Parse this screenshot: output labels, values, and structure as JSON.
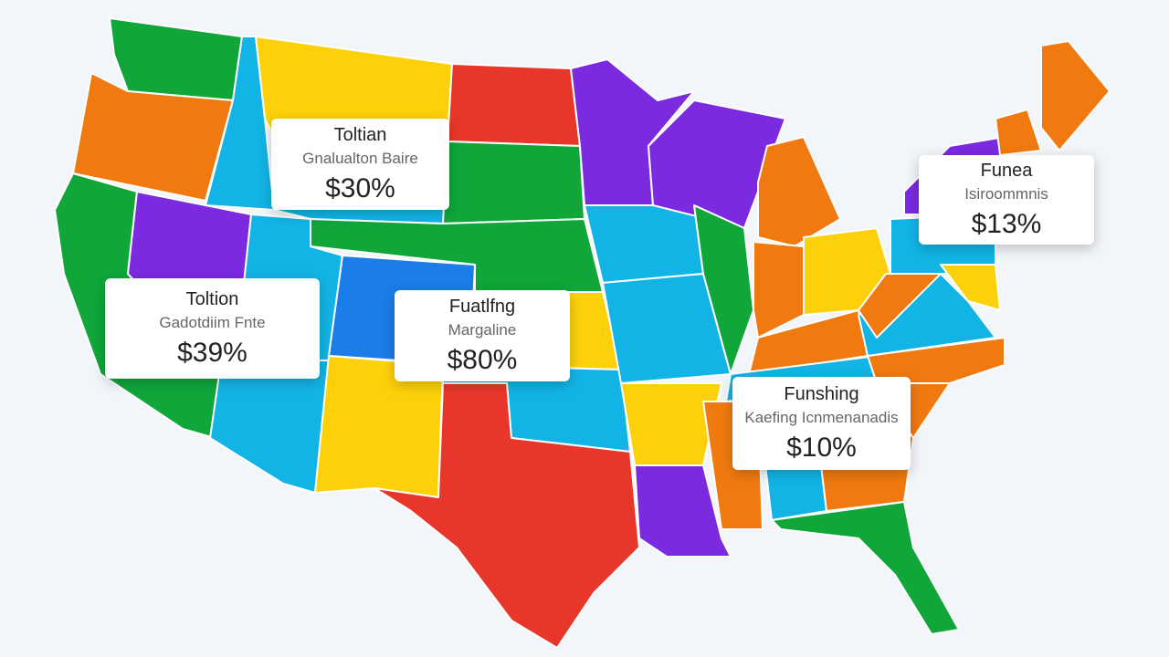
{
  "cards": [
    {
      "title": "Toltian",
      "subtitle": "Gnalualton Baire",
      "value": "$30%"
    },
    {
      "title": "Toltion",
      "subtitle": "Gadotdiim Fnte",
      "value": "$39%"
    },
    {
      "title": "Fuatlfng",
      "subtitle": "Margaline",
      "value": "$80%"
    },
    {
      "title": "Funea",
      "subtitle": "Isiroommnis",
      "value": "$13%"
    },
    {
      "title": "Funshing",
      "subtitle": "Kaefing Icnmenanadis",
      "value": "$10%"
    }
  ]
}
